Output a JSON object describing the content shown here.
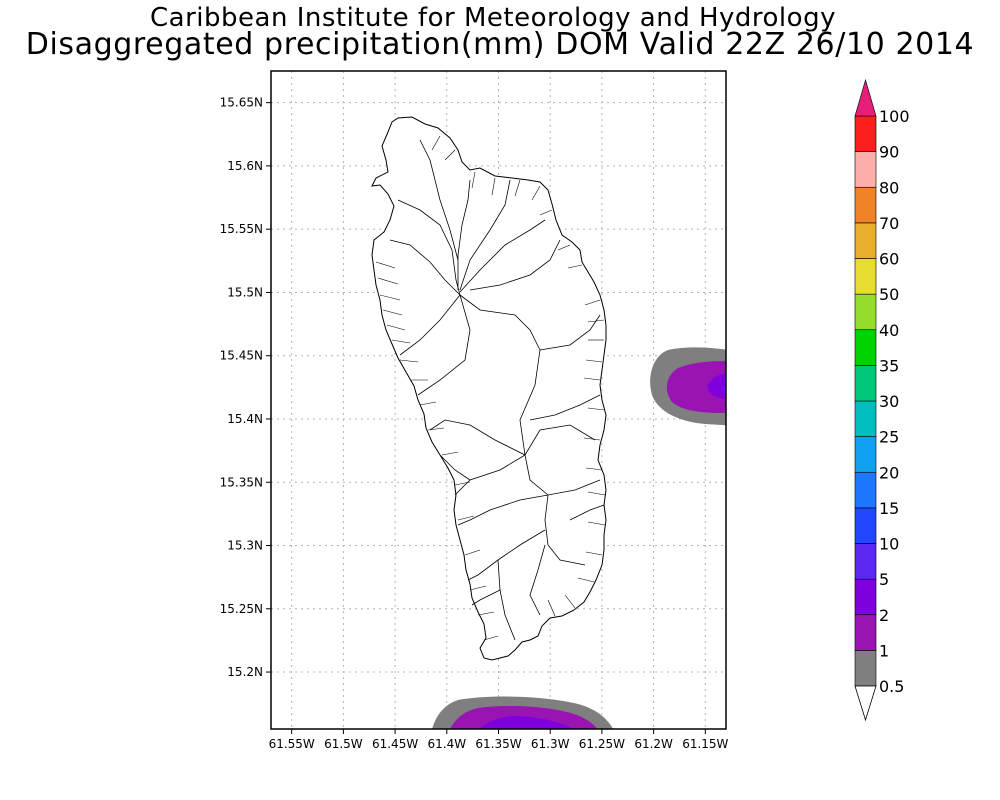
{
  "title": {
    "line1": "Caribbean Institute for Meteorology and Hydrology",
    "line2": "Disaggregated precipitation(mm) DOM Valid 22Z 26/10 2014"
  },
  "map": {
    "projection": "lat-lon",
    "lon_range": [
      -61.57,
      -61.13
    ],
    "lat_range": [
      15.155,
      15.675
    ],
    "grid": "dotted",
    "x_tick_labels": [
      "61.55W",
      "61.5W",
      "61.45W",
      "61.4W",
      "61.35W",
      "61.3W",
      "61.25W",
      "61.2W",
      "61.15W"
    ],
    "y_tick_labels": [
      "15.65N",
      "15.6N",
      "15.55N",
      "15.5N",
      "15.45N",
      "15.4N",
      "15.35N",
      "15.3N",
      "15.25N",
      "15.2N"
    ],
    "x_tick_values": [
      -61.55,
      -61.5,
      -61.45,
      -61.4,
      -61.35,
      -61.3,
      -61.25,
      -61.2,
      -61.15
    ],
    "y_tick_values": [
      15.65,
      15.6,
      15.55,
      15.5,
      15.45,
      15.4,
      15.35,
      15.3,
      15.25,
      15.2
    ]
  },
  "colorbar": {
    "levels": [
      "0.5",
      "1",
      "2",
      "5",
      "10",
      "15",
      "20",
      "25",
      "30",
      "35",
      "40",
      "50",
      "60",
      "70",
      "80",
      "90",
      "100"
    ],
    "colors": [
      "#7f7f7f",
      "#9a14b4",
      "#7f00dc",
      "#5a28f0",
      "#2346ff",
      "#1e78ff",
      "#0fa0f0",
      "#00bebe",
      "#00c878",
      "#00d200",
      "#96dc2d",
      "#e6dc32",
      "#e6af2d",
      "#f08228",
      "#faafaa",
      "#ff1e1e",
      "#f04650"
    ],
    "under_color": "#ffffff",
    "over_color": "#e61e78"
  },
  "colors": {
    "frame": "#000000",
    "grid": "#b4b4b4",
    "coast": "#000000"
  }
}
